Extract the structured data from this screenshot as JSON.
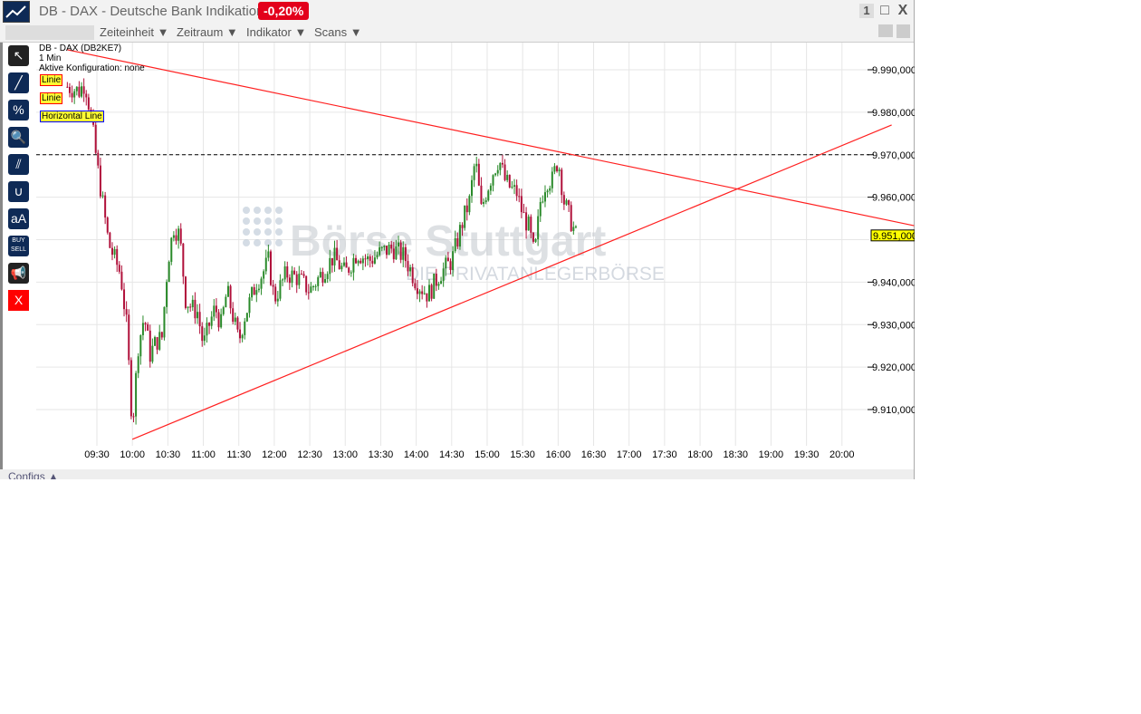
{
  "window": {
    "title": "DB - DAX - Deutsche Bank Indikation",
    "change": "-0,20%",
    "btn_one": "1",
    "btn_max": "□",
    "btn_close": "X"
  },
  "toolbar": {
    "search_placeholder": "",
    "menus": [
      "Zeiteinheit ▼",
      "Zeitraum ▼",
      "Indikator ▼",
      "Scans ▼"
    ]
  },
  "tools": [
    {
      "icon": "arrow-icon",
      "label": "↖"
    },
    {
      "icon": "line-icon",
      "label": "╱"
    },
    {
      "icon": "percent-icon",
      "label": "%"
    },
    {
      "icon": "zoom-icon",
      "label": "🔍"
    },
    {
      "icon": "parallel-lines-icon",
      "label": "⫽"
    },
    {
      "icon": "curve-icon",
      "label": "∪"
    },
    {
      "icon": "text-icon",
      "label": "aA"
    },
    {
      "icon": "buy-sell-icon",
      "label": "BUY SELL"
    },
    {
      "icon": "megaphone-icon",
      "label": "📢"
    },
    {
      "icon": "delete-icon",
      "label": "X"
    }
  ],
  "info": {
    "symbol": "DB - DAX (DB2KE7)",
    "interval": "1 Min",
    "config": "Aktive Konfiguration: none"
  },
  "drawings": {
    "labels": [
      "Linie",
      "Linie",
      "Horizontal Line"
    ]
  },
  "footer": {
    "configs": "Configs ▲"
  },
  "watermark": {
    "brand": "Börse Stuttgart",
    "tagline": "DIE PRIVATANLEGERBÖRSE"
  },
  "chart_data": {
    "type": "candlestick",
    "x_ticks": [
      "09:30",
      "10:00",
      "10:30",
      "11:00",
      "11:30",
      "12:00",
      "12:30",
      "13:00",
      "13:30",
      "14:00",
      "14:30",
      "15:00",
      "15:30",
      "16:00",
      "16:30",
      "17:00",
      "17:30",
      "18:00",
      "18:30",
      "19:00",
      "19:30",
      "20:00"
    ],
    "y_ticks": [
      "9.910,000",
      "9.920,000",
      "9.930,000",
      "9.940,000",
      "9.950,000",
      "9.960,000",
      "9.970,000",
      "9.980,000",
      "9.990,000"
    ],
    "ylim": [
      9900,
      9995
    ],
    "last_price": "9.951,000",
    "colors": {
      "up": "#2a8a2a",
      "down": "#b0103a",
      "trendline": "#ff2020",
      "hline": "#1010c0",
      "last": "#ffff00"
    },
    "closes": [
      [
        "09:05",
        9986
      ],
      [
        "09:15",
        9985
      ],
      [
        "09:20",
        9987
      ],
      [
        "09:25",
        9979
      ],
      [
        "09:30",
        9968
      ],
      [
        "09:40",
        9949
      ],
      [
        "09:50",
        9942
      ],
      [
        "09:55",
        9930
      ],
      [
        "10:00",
        9906
      ],
      [
        "10:05",
        9925
      ],
      [
        "10:10",
        9932
      ],
      [
        "10:15",
        9923
      ],
      [
        "10:20",
        9926
      ],
      [
        "10:25",
        9927
      ],
      [
        "10:30",
        9945
      ],
      [
        "10:35",
        9953
      ],
      [
        "10:40",
        9951
      ],
      [
        "10:45",
        9936
      ],
      [
        "10:50",
        9934
      ],
      [
        "10:55",
        9933
      ],
      [
        "11:00",
        9925
      ],
      [
        "11:05",
        9930
      ],
      [
        "11:10",
        9934
      ],
      [
        "11:15",
        9930
      ],
      [
        "11:20",
        9938
      ],
      [
        "11:25",
        9932
      ],
      [
        "11:30",
        9926
      ],
      [
        "11:35",
        9932
      ],
      [
        "11:40",
        9936
      ],
      [
        "11:45",
        9940
      ],
      [
        "11:50",
        9942
      ],
      [
        "11:55",
        9945
      ],
      [
        "12:00",
        9936
      ],
      [
        "12:10",
        9942
      ],
      [
        "12:20",
        9941
      ],
      [
        "12:30",
        9938
      ],
      [
        "12:40",
        9942
      ],
      [
        "12:50",
        9946
      ],
      [
        "13:00",
        9942
      ],
      [
        "13:10",
        9947
      ],
      [
        "13:20",
        9945
      ],
      [
        "13:30",
        9947
      ],
      [
        "13:40",
        9948
      ],
      [
        "13:50",
        9946
      ],
      [
        "14:00",
        9940
      ],
      [
        "14:10",
        9937
      ],
      [
        "14:20",
        9942
      ],
      [
        "14:30",
        9945
      ],
      [
        "14:40",
        9955
      ],
      [
        "14:45",
        9959
      ],
      [
        "14:50",
        9969
      ],
      [
        "14:55",
        9957
      ],
      [
        "15:00",
        9962
      ],
      [
        "15:05",
        9966
      ],
      [
        "15:10",
        9969
      ],
      [
        "15:15",
        9964
      ],
      [
        "15:20",
        9962
      ],
      [
        "15:25",
        9961
      ],
      [
        "15:30",
        9956
      ],
      [
        "15:35",
        9953
      ],
      [
        "15:40",
        9946
      ],
      [
        "15:45",
        9959
      ],
      [
        "15:50",
        9964
      ],
      [
        "15:55",
        9964
      ],
      [
        "16:00",
        9969
      ],
      [
        "16:05",
        9959
      ],
      [
        "16:10",
        9955
      ],
      [
        "16:15",
        9951
      ]
    ],
    "trendlines": [
      {
        "from": [
          "09:05",
          9994.7
        ],
        "to": [
          "21:01",
          9953.3
        ]
      },
      {
        "from": [
          "10:00",
          9903
        ],
        "to": [
          "20:42",
          9977
        ]
      }
    ],
    "horizontal_line": 9970
  }
}
